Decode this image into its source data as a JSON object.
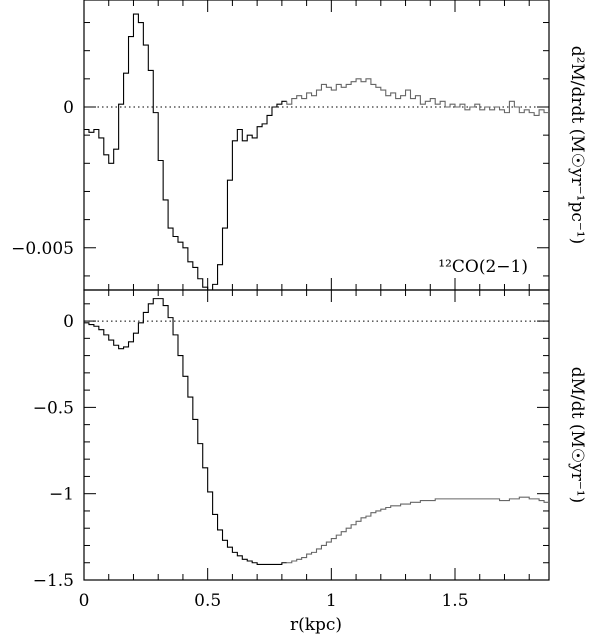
{
  "chart_data": [
    {
      "type": "line",
      "id": "top",
      "ylabel": "d²M/drdt (M☉yr⁻¹pc⁻¹)",
      "annotation": "¹²CO(2−1)",
      "xlim": [
        0,
        1.88
      ],
      "ylim": [
        -0.0065,
        0.0038
      ],
      "yticks_labeled": [
        0,
        -0.005
      ],
      "yticks_labels": [
        "0",
        "−0.005"
      ],
      "zero_line": true,
      "step_width": 0.02,
      "series": [
        {
          "x": [
            0.02,
            0.04,
            0.06,
            0.08,
            0.1,
            0.12,
            0.14,
            0.16,
            0.18,
            0.2,
            0.22,
            0.24,
            0.26,
            0.28,
            0.3,
            0.32,
            0.34,
            0.36,
            0.38,
            0.4,
            0.42,
            0.44,
            0.46,
            0.48,
            0.5,
            0.52,
            0.54,
            0.56,
            0.58,
            0.6,
            0.62,
            0.64,
            0.66,
            0.68,
            0.7,
            0.72,
            0.74,
            0.76,
            0.78,
            0.8,
            0.82,
            0.84,
            0.86,
            0.88,
            0.9,
            0.92,
            0.94,
            0.96,
            0.98,
            1.0,
            1.02,
            1.04,
            1.06,
            1.08,
            1.1,
            1.12,
            1.14,
            1.16,
            1.18,
            1.2,
            1.22,
            1.24,
            1.26,
            1.28,
            1.3,
            1.32,
            1.34,
            1.36,
            1.38,
            1.4,
            1.42,
            1.44,
            1.46,
            1.48,
            1.5,
            1.52,
            1.54,
            1.56,
            1.58,
            1.6,
            1.62,
            1.64,
            1.66,
            1.68,
            1.7,
            1.72,
            1.74,
            1.76,
            1.78,
            1.8,
            1.82,
            1.84,
            1.86,
            1.88
          ],
          "y": [
            -0.0008,
            -0.0009,
            -0.0008,
            -0.0011,
            -0.0017,
            -0.002,
            -0.0015,
            0.0001,
            0.0012,
            0.0025,
            0.0033,
            0.003,
            0.0022,
            0.0013,
            -0.0002,
            -0.0019,
            -0.0033,
            -0.0043,
            -0.0046,
            -0.0048,
            -0.005,
            -0.0055,
            -0.0057,
            -0.0061,
            -0.0064,
            -0.0065,
            -0.0063,
            -0.0056,
            -0.0043,
            -0.0026,
            -0.0012,
            -0.0008,
            -0.0012,
            -0.001,
            -0.0011,
            -0.0007,
            -0.0006,
            -0.0003,
            0.0,
            0.0001,
            0.0002,
            0.0001,
            0.0003,
            0.0004,
            0.0003,
            0.0005,
            0.0004,
            0.0006,
            0.0008,
            0.0007,
            0.0006,
            0.0008,
            0.0007,
            0.0008,
            0.0009,
            0.001,
            0.0009,
            0.001,
            0.0008,
            0.0007,
            0.0006,
            0.0004,
            0.0005,
            0.0003,
            0.0004,
            0.0006,
            0.0003,
            0.0004,
            0.0001,
            0.0002,
            0.0003,
            0.0001,
            0.0002,
            0.0,
            0.0001,
            0.0,
            0.0001,
            -0.0001,
            0.0,
            0.0001,
            -0.0001,
            0.0,
            -0.0001,
            0.0,
            -0.0001,
            -0.0002,
            0.0002,
            0.0,
            -0.0002,
            -0.0001,
            -0.0002,
            -0.0003,
            -0.0001,
            -0.0002
          ]
        }
      ]
    },
    {
      "type": "line",
      "id": "bottom",
      "ylabel": "dM/dt (M☉yr⁻¹)",
      "xlabel": "r(kpc)",
      "xlim": [
        0,
        1.88
      ],
      "ylim": [
        -1.5,
        0.18
      ],
      "xticks_labeled": [
        0,
        0.5,
        1,
        1.5
      ],
      "xticks_labels": [
        "0",
        "0.5",
        "1",
        "1.5"
      ],
      "yticks_labeled": [
        0,
        -0.5,
        -1,
        -1.5
      ],
      "yticks_labels": [
        "0",
        "−0.5",
        "−1",
        "−1.5"
      ],
      "zero_line": true,
      "step_width": 0.02,
      "series": [
        {
          "x": [
            0.02,
            0.04,
            0.06,
            0.08,
            0.1,
            0.12,
            0.14,
            0.16,
            0.18,
            0.2,
            0.22,
            0.24,
            0.26,
            0.28,
            0.3,
            0.32,
            0.34,
            0.36,
            0.38,
            0.4,
            0.42,
            0.44,
            0.46,
            0.48,
            0.5,
            0.52,
            0.54,
            0.56,
            0.58,
            0.6,
            0.62,
            0.64,
            0.66,
            0.68,
            0.7,
            0.72,
            0.74,
            0.76,
            0.78,
            0.8,
            0.82,
            0.84,
            0.86,
            0.88,
            0.9,
            0.92,
            0.94,
            0.96,
            0.98,
            1.0,
            1.02,
            1.04,
            1.06,
            1.08,
            1.1,
            1.12,
            1.14,
            1.16,
            1.18,
            1.2,
            1.22,
            1.24,
            1.26,
            1.28,
            1.3,
            1.32,
            1.34,
            1.36,
            1.38,
            1.4,
            1.42,
            1.44,
            1.46,
            1.48,
            1.5,
            1.52,
            1.54,
            1.56,
            1.58,
            1.6,
            1.62,
            1.64,
            1.66,
            1.68,
            1.7,
            1.72,
            1.74,
            1.76,
            1.78,
            1.8,
            1.82,
            1.84,
            1.86,
            1.88
          ],
          "y": [
            -0.01,
            -0.02,
            -0.03,
            -0.05,
            -0.08,
            -0.11,
            -0.14,
            -0.16,
            -0.15,
            -0.12,
            -0.07,
            -0.01,
            0.05,
            0.1,
            0.13,
            0.13,
            0.09,
            0.02,
            -0.08,
            -0.2,
            -0.32,
            -0.44,
            -0.57,
            -0.71,
            -0.85,
            -0.99,
            -1.12,
            -1.21,
            -1.27,
            -1.31,
            -1.34,
            -1.36,
            -1.38,
            -1.39,
            -1.4,
            -1.41,
            -1.41,
            -1.41,
            -1.41,
            -1.41,
            -1.4,
            -1.4,
            -1.39,
            -1.38,
            -1.37,
            -1.35,
            -1.34,
            -1.32,
            -1.3,
            -1.28,
            -1.26,
            -1.24,
            -1.22,
            -1.2,
            -1.18,
            -1.16,
            -1.14,
            -1.13,
            -1.11,
            -1.1,
            -1.09,
            -1.08,
            -1.07,
            -1.07,
            -1.06,
            -1.06,
            -1.05,
            -1.05,
            -1.04,
            -1.04,
            -1.04,
            -1.03,
            -1.03,
            -1.03,
            -1.03,
            -1.03,
            -1.03,
            -1.03,
            -1.03,
            -1.03,
            -1.03,
            -1.03,
            -1.03,
            -1.03,
            -1.04,
            -1.04,
            -1.03,
            -1.03,
            -1.02,
            -1.02,
            -1.03,
            -1.03,
            -1.04,
            -1.05
          ]
        }
      ]
    }
  ],
  "colors": {
    "early": "#000000",
    "late": "#666666"
  },
  "late_segment_start_x": 0.82
}
